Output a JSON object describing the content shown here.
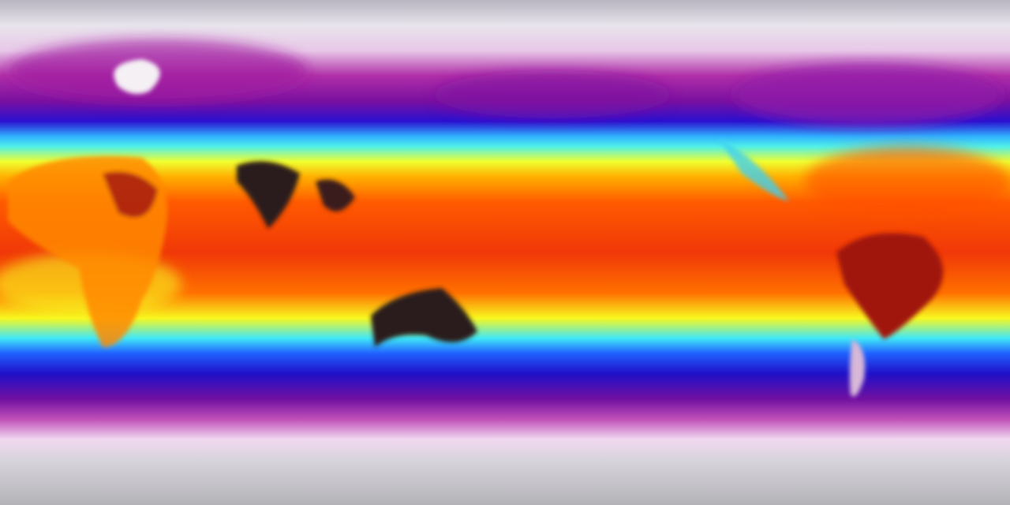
{
  "map": {
    "projection": "equirectangular",
    "colormap": [
      "#c8c8cc",
      "#f2e4f2",
      "#c040b0",
      "#8a10a0",
      "#2010d8",
      "#20a0ff",
      "#40f0f0",
      "#f0ff20",
      "#ffc000",
      "#ff6000",
      "#e01010",
      "#8a0808",
      "#2a2020"
    ],
    "colors": {
      "polar": "#c6c6cc",
      "cold_pink": "#e8c8e8",
      "purple": "#8a10a0",
      "blue": "#2010d8",
      "cyan": "#40e8f8",
      "yellow": "#f8f820",
      "orange": "#ff7a00",
      "red": "#e81808",
      "hot_dark": "#2a1a1a"
    }
  }
}
